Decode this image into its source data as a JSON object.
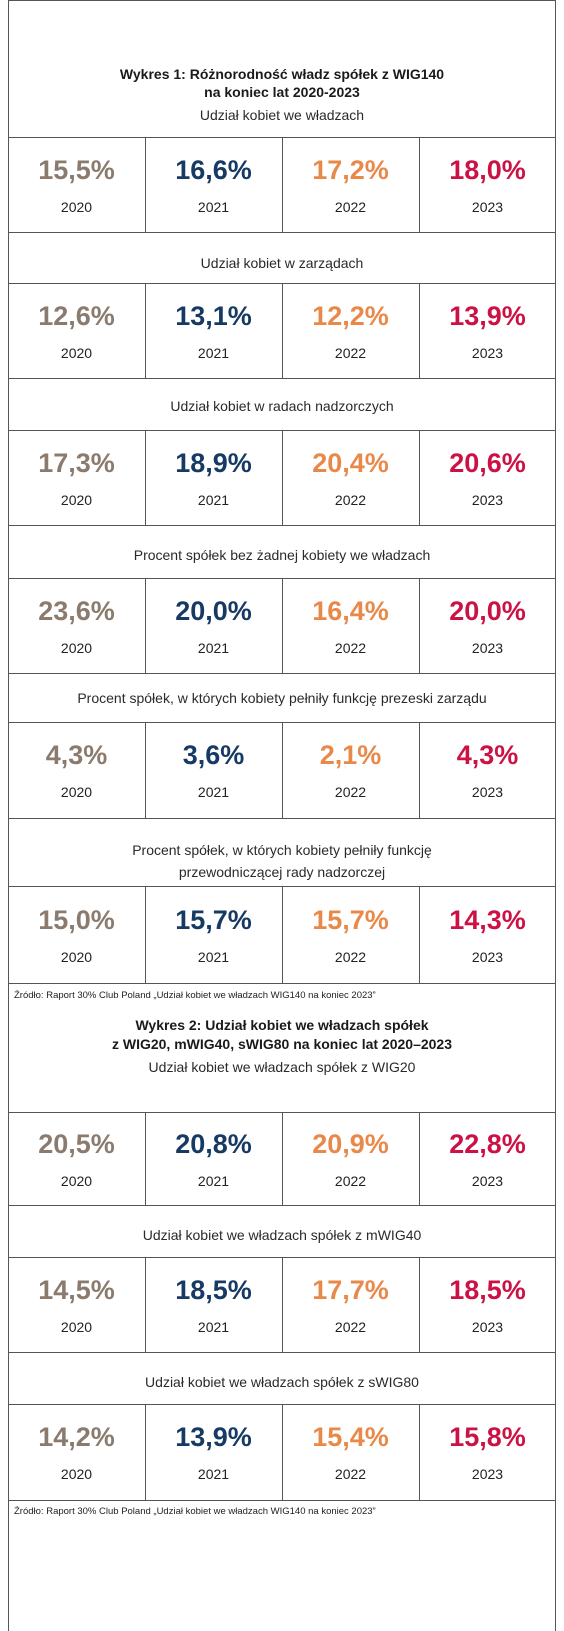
{
  "colors": {
    "2020": "#8a7b6e",
    "2021": "#163a63",
    "2022": "#e8894a",
    "2023": "#cc1245"
  },
  "years": [
    "2020",
    "2021",
    "2022",
    "2023"
  ],
  "charts": [
    {
      "title_line1": "Wykres 1: Różnorodność władz spółek z WIG140",
      "title_line2": "na koniec lat  2020-2023",
      "sections": [
        {
          "label": "Udział kobiet we władzach",
          "values": [
            "15,5%",
            "16,6%",
            "17,2%",
            "18,0%"
          ]
        },
        {
          "label": "Udział kobiet w zarządach",
          "values": [
            "12,6%",
            "13,1%",
            "12,2%",
            "13,9%"
          ]
        },
        {
          "label": "Udział kobiet w radach nadzorczych",
          "values": [
            "17,3%",
            "18,9%",
            "20,4%",
            "20,6%"
          ]
        },
        {
          "label": "Procent spółek bez żadnej kobiety we władzach",
          "values": [
            "23,6%",
            "20,0%",
            "16,4%",
            "20,0%"
          ]
        },
        {
          "label": "Procent spółek, w których kobiety pełniły funkcję prezeski zarządu",
          "values": [
            "4,3%",
            "3,6%",
            "2,1%",
            "4,3%"
          ]
        },
        {
          "label": "Procent spółek, w których kobiety pełniły funkcję",
          "label2": "przewodniczącej rady nadzorczej",
          "values": [
            "15,0%",
            "15,7%",
            "15,7%",
            "14,3%"
          ]
        }
      ],
      "source": "Źródło: Raport 30% Club Poland „Udział kobiet we władzach WIG140 na koniec 2023”"
    },
    {
      "title_line1": "Wykres 2: Udział kobiet we władzach spółek",
      "title_line2": "z WIG20, mWIG40, sWIG80 na koniec lat 2020–2023",
      "sections": [
        {
          "label": "Udział kobiet we władzach spółek z WIG20",
          "values": [
            "20,5%",
            "20,8%",
            "20,9%",
            "22,8%"
          ]
        },
        {
          "label": "Udział kobiet we władzach spółek z mWIG40",
          "values": [
            "14,5%",
            "18,5%",
            "17,7%",
            "18,5%"
          ]
        },
        {
          "label": "Udział kobiet we władzach spółek z sWIG80",
          "values": [
            "14,2%",
            "13,9%",
            "15,4%",
            "15,8%"
          ]
        }
      ],
      "source": "Źródło: Raport 30% Club Poland „Udział kobiet we władzach WIG140 na koniec 2023”"
    }
  ],
  "chart_data": [
    {
      "type": "table",
      "title": "Wykres 1: Różnorodność władz spółek z WIG140 na koniec lat  2020-2023",
      "categories": [
        "2020",
        "2021",
        "2022",
        "2023"
      ],
      "series": [
        {
          "name": "Udział kobiet we władzach",
          "values": [
            15.5,
            16.6,
            17.2,
            18.0
          ]
        },
        {
          "name": "Udział kobiet w zarządach",
          "values": [
            12.6,
            13.1,
            12.2,
            13.9
          ]
        },
        {
          "name": "Udział kobiet w radach nadzorczych",
          "values": [
            17.3,
            18.9,
            20.4,
            20.6
          ]
        },
        {
          "name": "Procent spółek bez żadnej kobiety we władzach",
          "values": [
            23.6,
            20.0,
            16.4,
            20.0
          ]
        },
        {
          "name": "Procent spółek, w których kobiety pełniły funkcję prezeski zarządu",
          "values": [
            4.3,
            3.6,
            2.1,
            4.3
          ]
        },
        {
          "name": "Procent spółek, w których kobiety pełniły funkcję przewodniczącej rady nadzorczej",
          "values": [
            15.0,
            15.7,
            15.7,
            14.3
          ]
        }
      ]
    },
    {
      "type": "table",
      "title": "Wykres 2: Udział kobiet we władzach spółek z WIG20, mWIG40, sWIG80 na koniec lat 2020–2023",
      "categories": [
        "2020",
        "2021",
        "2022",
        "2023"
      ],
      "series": [
        {
          "name": "Udział kobiet we władzach spółek z WIG20",
          "values": [
            20.5,
            20.8,
            20.9,
            22.8
          ]
        },
        {
          "name": "Udział kobiet we władzach spółek z mWIG40",
          "values": [
            14.5,
            18.5,
            17.7,
            18.5
          ]
        },
        {
          "name": "Udział kobiet we władzach spółek z sWIG80",
          "values": [
            14.2,
            13.9,
            15.4,
            15.8
          ]
        }
      ]
    }
  ]
}
